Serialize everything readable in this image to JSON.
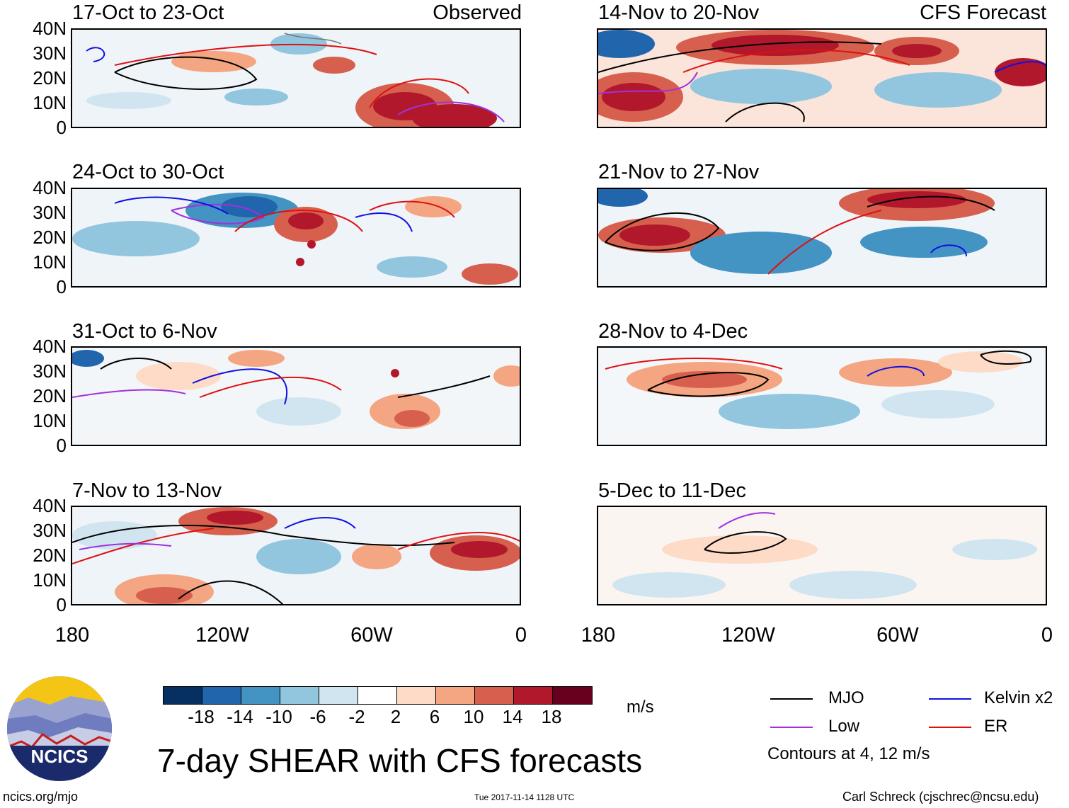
{
  "left_header": "Observed",
  "right_header": "CFS Forecast",
  "panels_left": [
    {
      "title": "17-Oct to 23-Oct"
    },
    {
      "title": "24-Oct to 30-Oct"
    },
    {
      "title": "31-Oct to 6-Nov"
    },
    {
      "title": "7-Nov to 13-Nov"
    }
  ],
  "panels_right": [
    {
      "title": "14-Nov to 20-Nov"
    },
    {
      "title": "21-Nov to 27-Nov"
    },
    {
      "title": "28-Nov to 4-Dec"
    },
    {
      "title": "5-Dec to 11-Dec"
    }
  ],
  "lat_labels": [
    "40N",
    "30N",
    "20N",
    "10N",
    "0"
  ],
  "lon_labels": [
    "180",
    "120W",
    "60W",
    "0"
  ],
  "colorbar": {
    "colors": [
      "#053061",
      "#2166ac",
      "#4393c3",
      "#92c5de",
      "#d1e5f0",
      "#ffffff",
      "#fddbc7",
      "#f4a582",
      "#d6604d",
      "#b2182b",
      "#67001f"
    ],
    "labels": [
      "-18",
      "-14",
      "-10",
      "-6",
      "-2",
      "2",
      "6",
      "10",
      "14",
      "18"
    ],
    "units": "m/s"
  },
  "legend": {
    "items": [
      {
        "label": "MJO",
        "color": "#000000"
      },
      {
        "label": "Kelvin x2",
        "color": "#1010e0"
      },
      {
        "label": "Low",
        "color": "#a030e0"
      },
      {
        "label": "ER",
        "color": "#e01010"
      }
    ],
    "contours_note": "Contours at 4, 12 m/s"
  },
  "logo_text": "NCICS",
  "main_title": "7-day SHEAR with CFS forecasts",
  "footer": {
    "left": "ncics.org/mjo",
    "center": "Tue 2017-11-14 1128 UTC",
    "right": "Carl Schreck (cjschrec@ncsu.edu)"
  }
}
